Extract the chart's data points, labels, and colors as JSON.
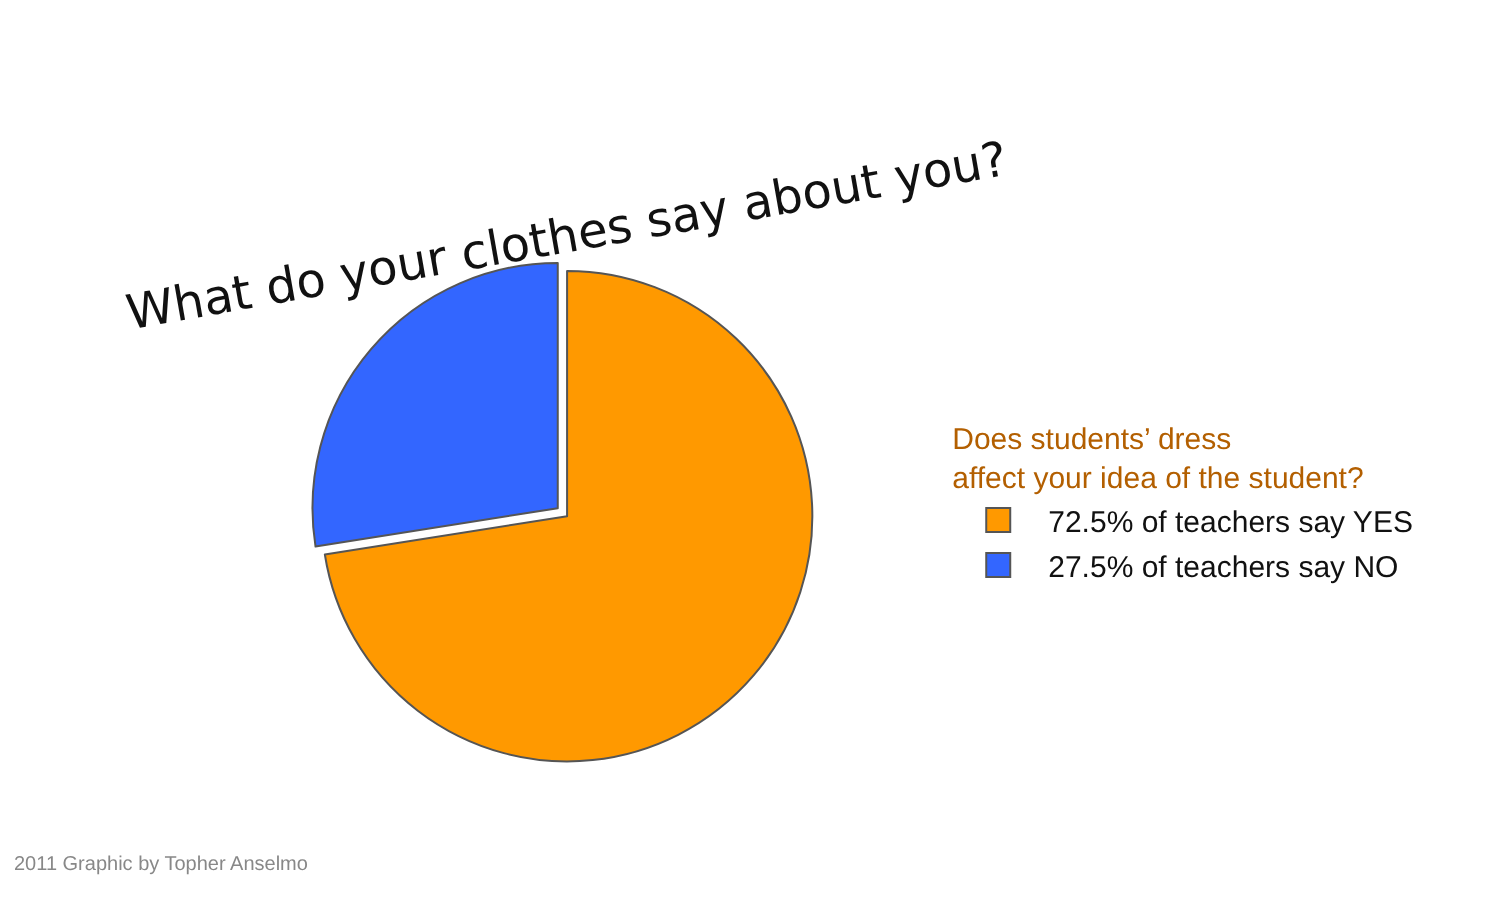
{
  "chart_data": {
    "type": "pie",
    "title": "What do your clothes say about you?",
    "legend_title": "Does students’ dress affect your idea of the student?",
    "categories": [
      "72.5% of teachers say YES",
      "27.5% of teachers say NO"
    ],
    "values": [
      72.5,
      27.5
    ],
    "colors": [
      "#ff9900",
      "#3366ff"
    ],
    "legend": "right",
    "annotations": [
      "2011 Graphic by Topher Anselmo"
    ]
  }
}
